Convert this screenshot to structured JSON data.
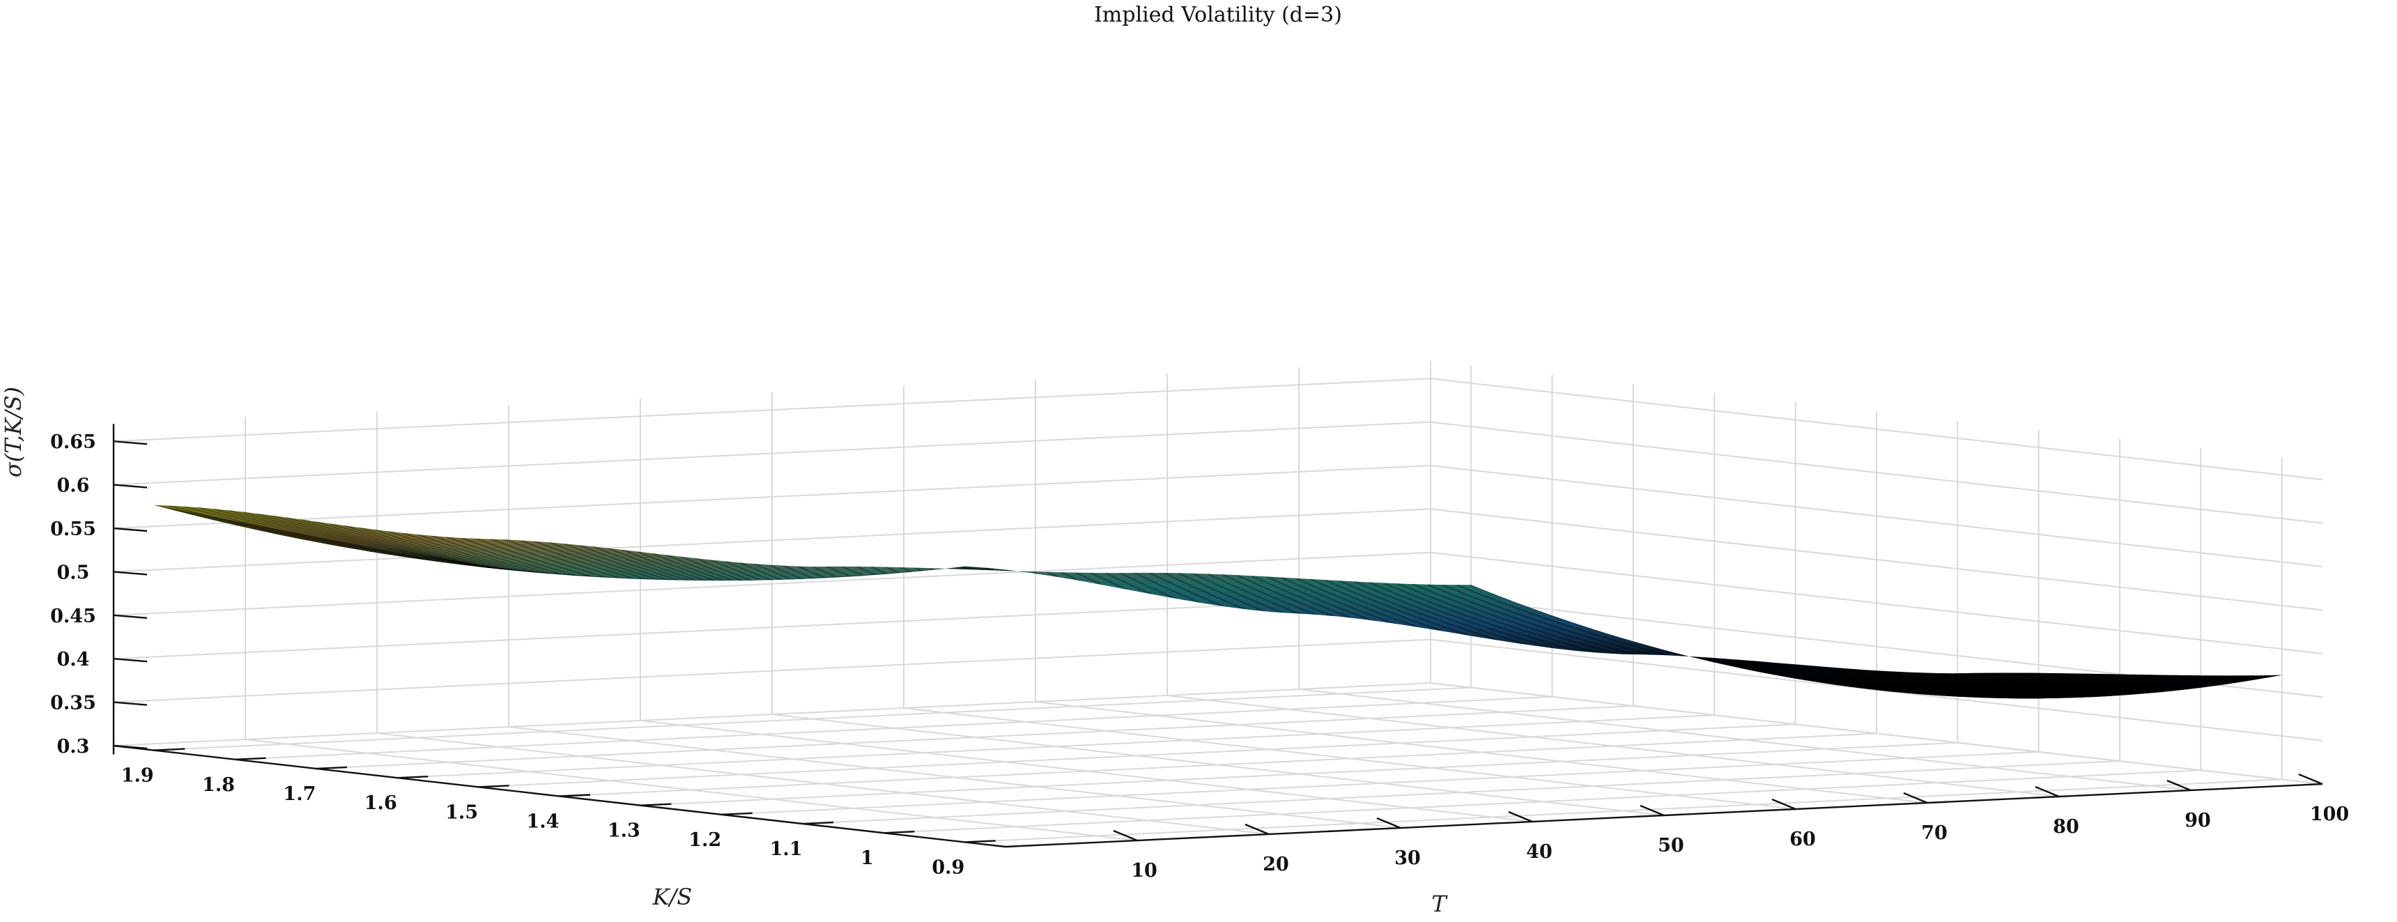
{
  "chart_data": {
    "type": "surface",
    "title": "Implied Volatility (d=3)",
    "xlabel": "K/S",
    "ylabel": "T",
    "zlabel": "σ(T,K/S)",
    "x_ticks": [
      "1.9",
      "1.8",
      "1.7",
      "1.6",
      "1.5",
      "1.4",
      "1.3",
      "1.2",
      "1.1",
      "1",
      "0.9"
    ],
    "y_ticks": [
      "10",
      "20",
      "30",
      "40",
      "50",
      "60",
      "70",
      "80",
      "90",
      "100"
    ],
    "z_ticks": [
      "0.3",
      "0.35",
      "0.4",
      "0.45",
      "0.5",
      "0.55",
      "0.6",
      "0.65"
    ],
    "xlim": [
      0.85,
      1.95
    ],
    "ylim": [
      0,
      100
    ],
    "zlim": [
      0.29,
      0.67
    ],
    "grid": true,
    "surface_samples": {
      "T_values": [
        0,
        25,
        50,
        75,
        100
      ],
      "KS_values": [
        0.9,
        1.4,
        1.9
      ],
      "sigma": [
        [
          0.617,
          0.555,
          0.582
        ],
        [
          0.545,
          0.47,
          0.525
        ],
        [
          0.48,
          0.4,
          0.475
        ],
        [
          0.44,
          0.36,
          0.45
        ],
        [
          0.42,
          0.35,
          0.418
        ]
      ]
    }
  }
}
